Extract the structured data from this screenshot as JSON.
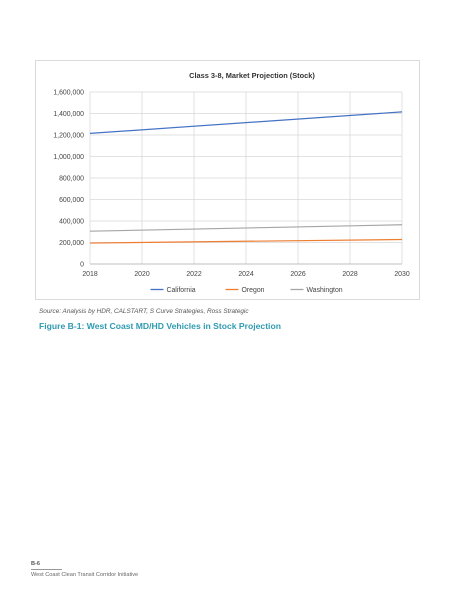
{
  "chart_data": {
    "type": "line",
    "title": "Class 3-8, Market Projection (Stock)",
    "xlabel": "",
    "ylabel": "",
    "x": [
      2018,
      2030
    ],
    "xticks": [
      2018,
      2020,
      2022,
      2024,
      2026,
      2028,
      2030
    ],
    "yticks": [
      0,
      200000,
      400000,
      600000,
      800000,
      1000000,
      1200000,
      1400000,
      1600000
    ],
    "ytick_labels": [
      "0",
      "200,000",
      "400,000",
      "600,000",
      "800,000",
      "1,000,000",
      "1,200,000",
      "1,400,000",
      "1,600,000"
    ],
    "xlim": [
      2018,
      2030
    ],
    "ylim": [
      0,
      1600000
    ],
    "grid": "horizontal",
    "legend": "bottom",
    "series": [
      {
        "name": "California",
        "color": "#4472c4",
        "values": [
          1215000,
          1415000
        ]
      },
      {
        "name": "Oregon",
        "color": "#ed7d31",
        "values": [
          195000,
          228000
        ]
      },
      {
        "name": "Washington",
        "color": "#a5a5a5",
        "values": [
          305000,
          365000
        ]
      }
    ]
  },
  "source_note": "Source: Analysis by HDR, CALSTART, S Curve Strategies, Ross Strategic",
  "figure_caption": "Figure B-1: West Coast MD/HD Vehicles in Stock Projection",
  "footer": {
    "page_number": "B-6",
    "document_title": "West Coast Clean Transit Corridor Initiative"
  }
}
